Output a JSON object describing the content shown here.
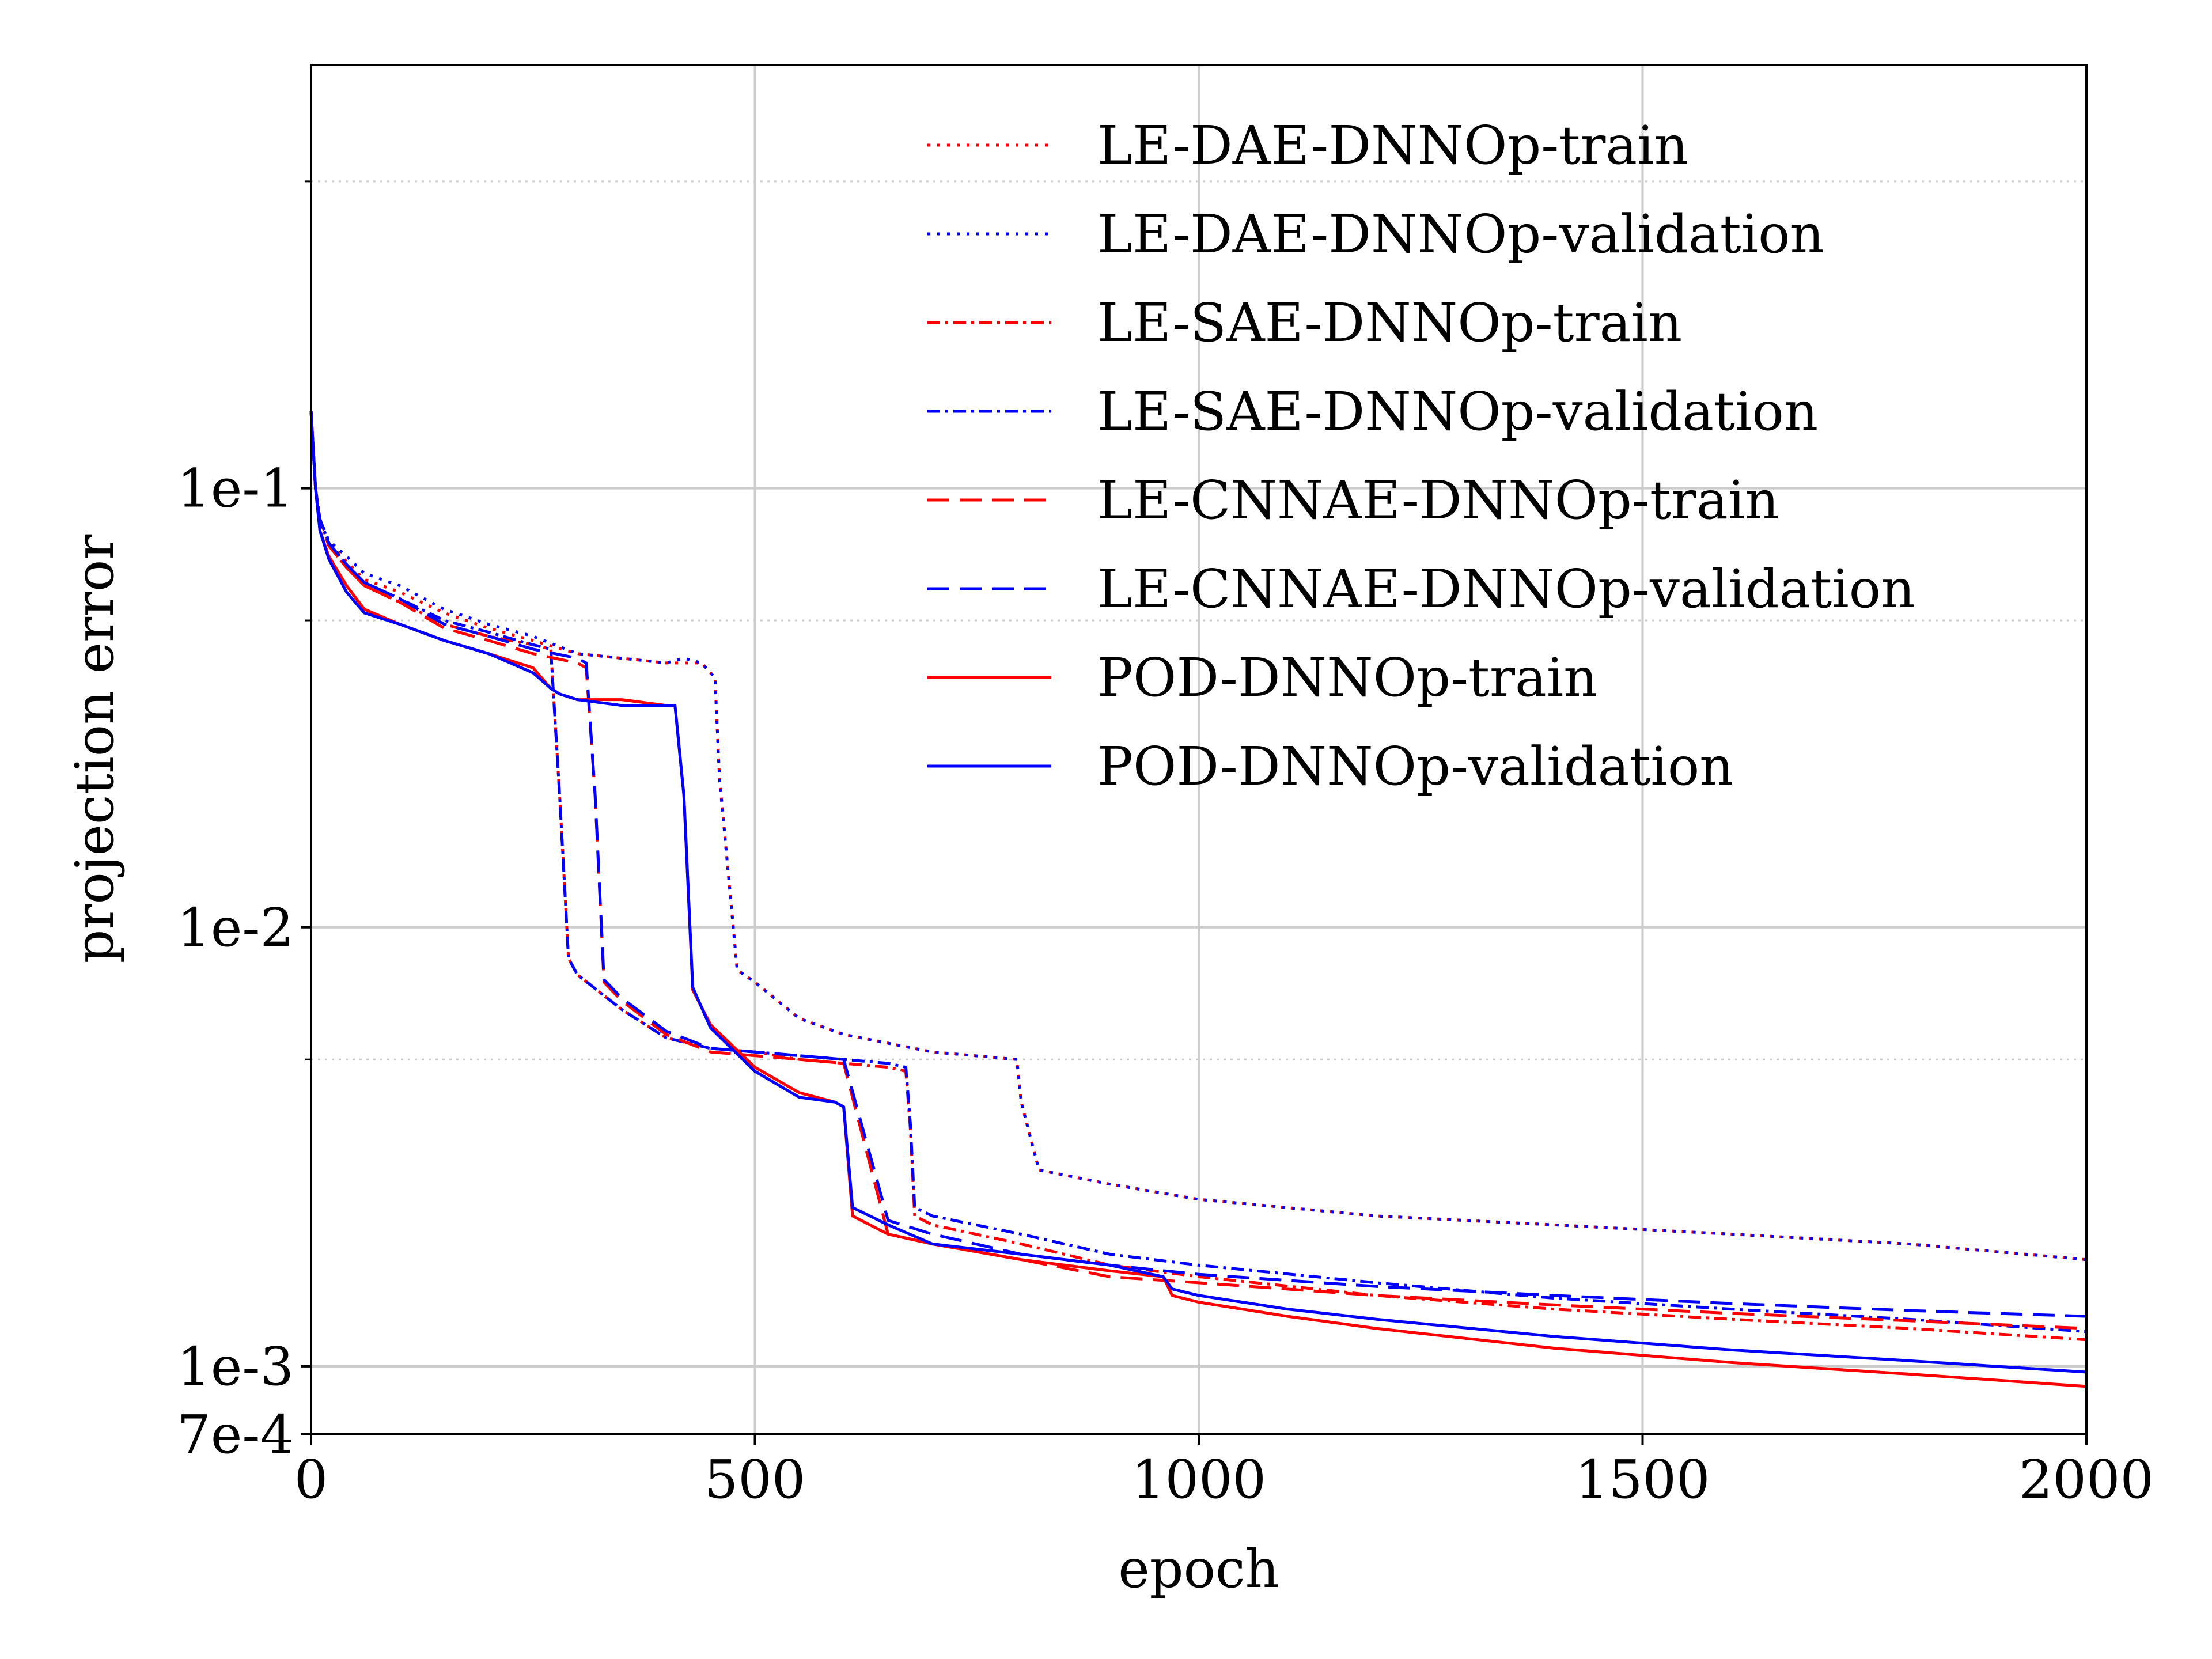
{
  "chart_data": {
    "type": "line",
    "xlabel": "epoch",
    "ylabel": "projection error",
    "xlim": [
      0,
      2000
    ],
    "ylim": [
      0.0007,
      0.92
    ],
    "yscale": "log",
    "grid": true,
    "legend_position": "top-right",
    "x_ticks": [
      {
        "value": 0,
        "label": "0"
      },
      {
        "value": 500,
        "label": "500"
      },
      {
        "value": 1000,
        "label": "1000"
      },
      {
        "value": 1500,
        "label": "1500"
      },
      {
        "value": 2000,
        "label": "2000"
      }
    ],
    "y_ticks": [
      {
        "value": 0.0007,
        "label": "7e-4"
      },
      {
        "value": 0.001,
        "label": "1e-3"
      },
      {
        "value": 0.01,
        "label": "1e-2"
      },
      {
        "value": 0.1,
        "label": "1e-1"
      }
    ],
    "y_minor_ticks": [
      0.005,
      0.05,
      0.5
    ],
    "series": [
      {
        "name": "LE-DAE-DNNOp-train",
        "color": "#ff0000",
        "dash": "dotted",
        "x": [
          0,
          5,
          10,
          20,
          40,
          60,
          100,
          150,
          200,
          250,
          300,
          350,
          400,
          420,
          440,
          455,
          460,
          480,
          500,
          550,
          600,
          700,
          795,
          800,
          820,
          900,
          1000,
          1200,
          1400,
          1600,
          1800,
          2000
        ],
        "y": [
          0.15,
          0.1,
          0.085,
          0.075,
          0.068,
          0.062,
          0.058,
          0.052,
          0.048,
          0.045,
          0.042,
          0.041,
          0.04,
          0.04,
          0.04,
          0.037,
          0.022,
          0.008,
          0.0075,
          0.0062,
          0.0057,
          0.0052,
          0.005,
          0.004,
          0.0028,
          0.0026,
          0.0024,
          0.0022,
          0.0021,
          0.002,
          0.0019,
          0.00175
        ]
      },
      {
        "name": "LE-DAE-DNNOp-validation",
        "color": "#0000ff",
        "dash": "dotted",
        "x": [
          0,
          5,
          10,
          20,
          40,
          60,
          100,
          150,
          200,
          250,
          300,
          350,
          400,
          420,
          440,
          455,
          460,
          480,
          500,
          550,
          600,
          700,
          795,
          800,
          820,
          900,
          1000,
          1200,
          1400,
          1600,
          1800,
          2000
        ],
        "y": [
          0.15,
          0.1,
          0.085,
          0.076,
          0.07,
          0.064,
          0.06,
          0.053,
          0.049,
          0.046,
          0.042,
          0.041,
          0.04,
          0.041,
          0.04,
          0.037,
          0.022,
          0.008,
          0.0075,
          0.0062,
          0.0057,
          0.0052,
          0.005,
          0.004,
          0.0028,
          0.0026,
          0.0024,
          0.0022,
          0.0021,
          0.002,
          0.0019,
          0.00175
        ]
      },
      {
        "name": "LE-SAE-DNNOp-train",
        "color": "#ff0000",
        "dash": "dashdot",
        "x": [
          0,
          5,
          10,
          20,
          40,
          60,
          100,
          150,
          200,
          250,
          270,
          280,
          290,
          300,
          350,
          400,
          450,
          500,
          550,
          600,
          650,
          670,
          675,
          680,
          700,
          800,
          900,
          1000,
          1200,
          1400,
          1600,
          1800,
          2000
        ],
        "y": [
          0.15,
          0.1,
          0.085,
          0.074,
          0.066,
          0.06,
          0.055,
          0.049,
          0.046,
          0.044,
          0.043,
          0.02,
          0.0085,
          0.0078,
          0.0065,
          0.0056,
          0.0053,
          0.0052,
          0.005,
          0.0049,
          0.0048,
          0.0047,
          0.0035,
          0.0022,
          0.0021,
          0.0019,
          0.0017,
          0.0016,
          0.00145,
          0.00135,
          0.00128,
          0.00122,
          0.00115
        ]
      },
      {
        "name": "LE-SAE-DNNOp-validation",
        "color": "#0000ff",
        "dash": "dashdot",
        "x": [
          0,
          5,
          10,
          20,
          40,
          60,
          100,
          150,
          200,
          250,
          270,
          280,
          290,
          300,
          350,
          400,
          450,
          500,
          550,
          600,
          650,
          670,
          675,
          680,
          700,
          800,
          900,
          1000,
          1200,
          1400,
          1600,
          1800,
          2000
        ],
        "y": [
          0.15,
          0.1,
          0.085,
          0.075,
          0.067,
          0.061,
          0.056,
          0.05,
          0.047,
          0.044,
          0.043,
          0.02,
          0.0085,
          0.0078,
          0.0065,
          0.0056,
          0.0053,
          0.0052,
          0.0051,
          0.005,
          0.0049,
          0.0048,
          0.0036,
          0.0023,
          0.0022,
          0.002,
          0.0018,
          0.0017,
          0.00155,
          0.00143,
          0.00135,
          0.00128,
          0.0012
        ]
      },
      {
        "name": "LE-CNNAE-DNNOp-train",
        "color": "#ff0000",
        "dash": "dashed",
        "x": [
          0,
          5,
          10,
          20,
          40,
          60,
          100,
          150,
          200,
          250,
          300,
          310,
          320,
          330,
          350,
          400,
          450,
          500,
          550,
          600,
          650,
          700,
          800,
          900,
          1000,
          1200,
          1400,
          1600,
          1800,
          2000
        ],
        "y": [
          0.15,
          0.1,
          0.085,
          0.074,
          0.066,
          0.06,
          0.055,
          0.048,
          0.045,
          0.042,
          0.04,
          0.039,
          0.02,
          0.0075,
          0.0068,
          0.0057,
          0.0052,
          0.0051,
          0.005,
          0.0049,
          0.002,
          0.0019,
          0.00175,
          0.0016,
          0.00155,
          0.00145,
          0.00138,
          0.00132,
          0.00127,
          0.00122
        ]
      },
      {
        "name": "LE-CNNAE-DNNOp-validation",
        "color": "#0000ff",
        "dash": "dashed",
        "x": [
          0,
          5,
          10,
          20,
          40,
          60,
          100,
          150,
          200,
          250,
          300,
          310,
          320,
          330,
          350,
          400,
          450,
          500,
          550,
          600,
          650,
          700,
          800,
          900,
          1000,
          1200,
          1400,
          1600,
          1800,
          2000
        ],
        "y": [
          0.15,
          0.1,
          0.085,
          0.075,
          0.067,
          0.061,
          0.056,
          0.049,
          0.046,
          0.043,
          0.041,
          0.04,
          0.02,
          0.0076,
          0.0069,
          0.0058,
          0.0053,
          0.0052,
          0.0051,
          0.005,
          0.00215,
          0.002,
          0.0018,
          0.0017,
          0.00162,
          0.00152,
          0.00145,
          0.00139,
          0.00134,
          0.0013
        ]
      },
      {
        "name": "POD-DNNOp-train",
        "color": "#ff0000",
        "dash": "solid",
        "x": [
          0,
          5,
          10,
          20,
          40,
          60,
          100,
          150,
          200,
          250,
          270,
          280,
          300,
          350,
          400,
          410,
          420,
          430,
          450,
          500,
          550,
          590,
          600,
          610,
          650,
          700,
          800,
          900,
          960,
          970,
          1000,
          1100,
          1200,
          1400,
          1600,
          1800,
          2000
        ],
        "y": [
          0.15,
          0.1,
          0.08,
          0.07,
          0.06,
          0.053,
          0.049,
          0.045,
          0.042,
          0.039,
          0.035,
          0.034,
          0.033,
          0.033,
          0.032,
          0.032,
          0.02,
          0.0072,
          0.006,
          0.0048,
          0.0042,
          0.004,
          0.0039,
          0.0022,
          0.002,
          0.0019,
          0.00175,
          0.00165,
          0.0016,
          0.00145,
          0.0014,
          0.0013,
          0.00122,
          0.0011,
          0.00102,
          0.00096,
          0.0009
        ]
      },
      {
        "name": "POD-DNNOp-validation",
        "color": "#0000ff",
        "dash": "solid",
        "x": [
          0,
          5,
          10,
          20,
          40,
          60,
          100,
          150,
          200,
          250,
          270,
          280,
          300,
          350,
          400,
          410,
          420,
          430,
          450,
          500,
          550,
          590,
          600,
          610,
          650,
          700,
          800,
          900,
          960,
          970,
          1000,
          1100,
          1200,
          1400,
          1600,
          1800,
          2000
        ],
        "y": [
          0.15,
          0.1,
          0.08,
          0.069,
          0.058,
          0.052,
          0.049,
          0.045,
          0.042,
          0.038,
          0.035,
          0.034,
          0.033,
          0.032,
          0.032,
          0.032,
          0.02,
          0.0073,
          0.0059,
          0.0047,
          0.0041,
          0.004,
          0.0039,
          0.0023,
          0.0021,
          0.0019,
          0.0018,
          0.0017,
          0.0016,
          0.0015,
          0.00145,
          0.00135,
          0.00128,
          0.00117,
          0.00109,
          0.00103,
          0.00097
        ]
      }
    ]
  }
}
